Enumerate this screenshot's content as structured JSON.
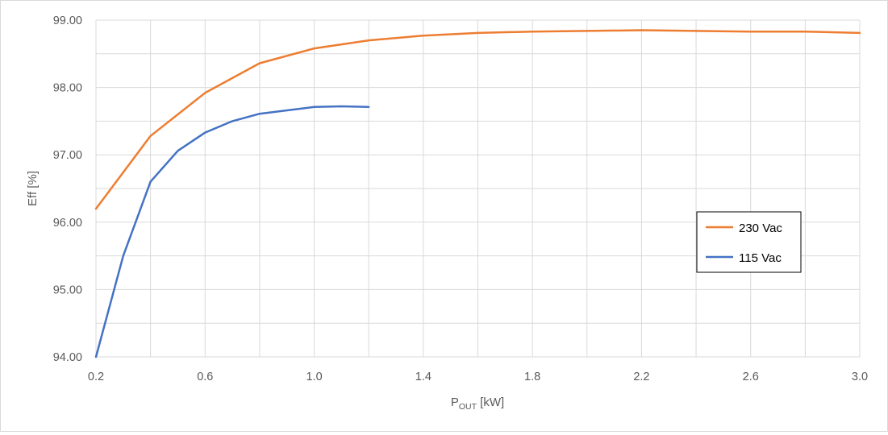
{
  "chart_data": {
    "type": "line",
    "xlabel": {
      "main": "P",
      "sub": "OUT",
      "unit": " [kW]"
    },
    "ylabel": "Eff [%]",
    "xlim": [
      0.2,
      3.0
    ],
    "ylim": [
      94.0,
      99.0
    ],
    "x_ticks": [
      "0.2",
      "0.6",
      "1.0",
      "1.4",
      "1.8",
      "2.2",
      "2.6",
      "3.0"
    ],
    "x_minor_grid": [
      0.4,
      0.8,
      1.2,
      1.6,
      2.0,
      2.4,
      2.8
    ],
    "y_ticks": [
      "94.00",
      "95.00",
      "96.00",
      "97.00",
      "98.00",
      "99.00"
    ],
    "y_minor_grid": [
      94.5,
      95.5,
      96.5,
      97.5,
      98.5
    ],
    "grid": true,
    "legend_position": "right",
    "series": [
      {
        "name": "230 Vac",
        "color": "#ed7d31",
        "points": [
          [
            0.2,
            96.2
          ],
          [
            0.4,
            97.28
          ],
          [
            0.6,
            97.92
          ],
          [
            0.8,
            98.36
          ],
          [
            1.0,
            98.58
          ],
          [
            1.2,
            98.7
          ],
          [
            1.4,
            98.77
          ],
          [
            1.6,
            98.81
          ],
          [
            1.8,
            98.83
          ],
          [
            2.0,
            98.84
          ],
          [
            2.2,
            98.85
          ],
          [
            2.4,
            98.84
          ],
          [
            2.6,
            98.83
          ],
          [
            2.8,
            98.83
          ],
          [
            3.0,
            98.81
          ]
        ]
      },
      {
        "name": "115 Vac",
        "color": "#4472c4",
        "points": [
          [
            0.2,
            94.0
          ],
          [
            0.3,
            95.5
          ],
          [
            0.4,
            96.6
          ],
          [
            0.5,
            97.06
          ],
          [
            0.6,
            97.33
          ],
          [
            0.7,
            97.5
          ],
          [
            0.8,
            97.61
          ],
          [
            0.9,
            97.66
          ],
          [
            1.0,
            97.71
          ],
          [
            1.1,
            97.72
          ],
          [
            1.2,
            97.71
          ]
        ]
      }
    ]
  }
}
